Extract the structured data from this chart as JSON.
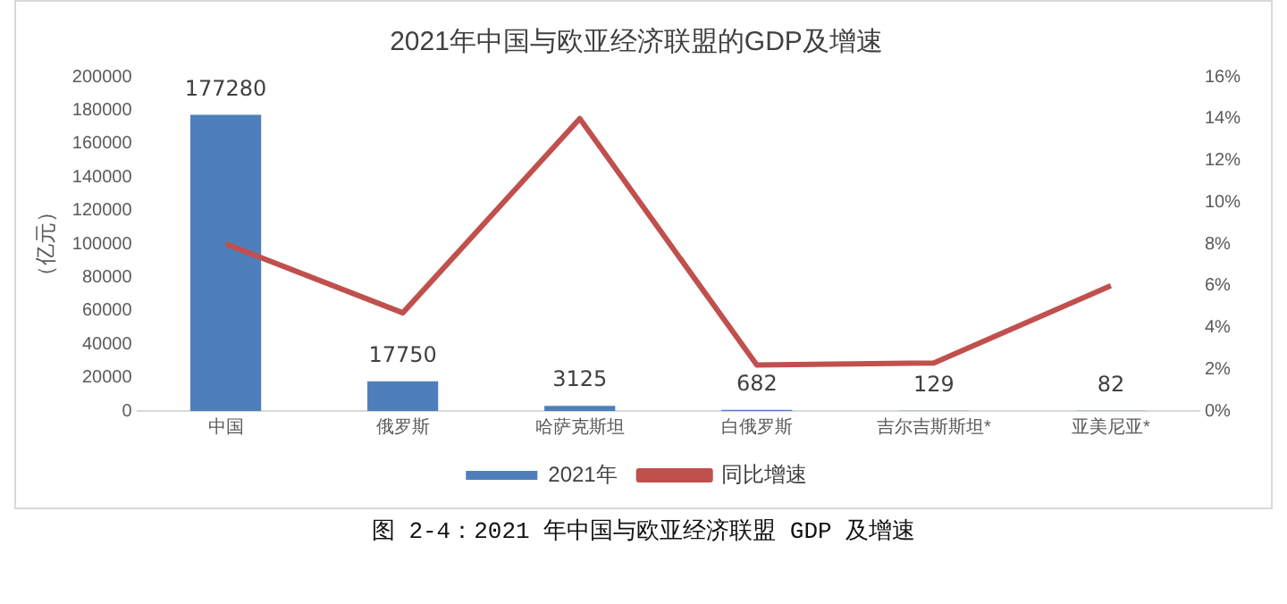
{
  "chart_data": {
    "type": "bar",
    "title": "2021年中国与欧亚经济联盟的GDP及增速",
    "ylabel": "（亿元）",
    "categories": [
      "中国",
      "俄罗斯",
      "哈萨克斯坦",
      "白俄罗斯",
      "吉尔吉斯斯坦*",
      "亚美尼亚*"
    ],
    "series": [
      {
        "name": "2021年",
        "color": "#4e7fbb",
        "values": [
          177280,
          17750,
          3125,
          682,
          129,
          82
        ],
        "value_labels": [
          "177280",
          "17750",
          "3125",
          "682",
          "129",
          "82"
        ]
      },
      {
        "name": "同比增速",
        "type": "line",
        "axis": "y2",
        "color": "#c0504d",
        "marker": "none",
        "values": [
          8.0,
          4.7,
          14.0,
          2.2,
          2.3,
          6.0
        ]
      }
    ],
    "ylim": [
      0,
      200000
    ],
    "yticks": [
      0,
      20000,
      40000,
      60000,
      80000,
      100000,
      120000,
      140000,
      160000,
      180000,
      200000
    ],
    "y2lim": [
      0,
      16
    ],
    "y2ticks": [
      {
        "value": 0,
        "label": "0%"
      },
      {
        "value": 2,
        "label": "2%"
      },
      {
        "value": 4,
        "label": "4%"
      },
      {
        "value": 6,
        "label": "6%"
      },
      {
        "value": 8,
        "label": "8%"
      },
      {
        "value": 10,
        "label": "10%"
      },
      {
        "value": 12,
        "label": "12%"
      },
      {
        "value": 14,
        "label": "14%"
      },
      {
        "value": 16,
        "label": "16%"
      }
    ],
    "grid": false,
    "legend": "bottom",
    "annotations": [
      "图 2-4：2021 年中国与欧亚经济联盟 GDP 及增速"
    ]
  }
}
